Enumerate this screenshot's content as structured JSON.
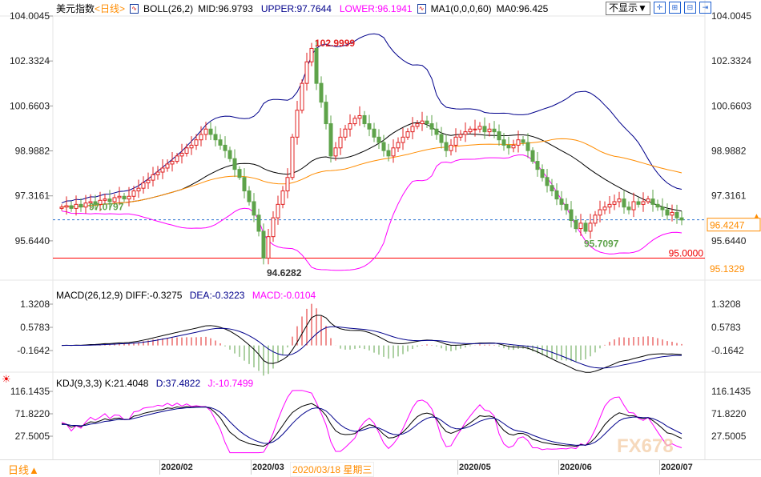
{
  "header": {
    "symbol": "美元指数",
    "period": "<日线>",
    "boll": "BOLL(26,2)",
    "mid": "MID:96.9793",
    "upper": "UPPER:97.7644",
    "lower": "LOWER:96.1941",
    "ma": "MA1(0,0,0,60)",
    "ma0": "MA0:96.425",
    "display_select": "不显示▼"
  },
  "macd_header": {
    "name": "MACD(26,12,9)",
    "diff": "DIFF:-0.3275",
    "dea": "DEA:-0.3223",
    "macd": "MACD:-0.0104"
  },
  "kdj_header": {
    "name": "KDJ(9,3,3)",
    "k": "K:21.4048",
    "d": "D:37.4822",
    "j": "J:-10.7499"
  },
  "footer": {
    "period": "日线▲",
    "cursor_date": "2020/03/18 星期三"
  },
  "colors": {
    "up": "#e02020",
    "down": "#5ea34a",
    "upper": "#00008b",
    "lower": "#ff00ff",
    "ma": "#ff8c00",
    "accent": "#ff8c00"
  },
  "chart_data": {
    "type": "candlestick",
    "price_ticks": [
      "104.0045",
      "102.3324",
      "100.6603",
      "98.9882",
      "97.3161",
      "95.6440"
    ],
    "price_tick_values": [
      104.0045,
      102.3324,
      100.6603,
      98.9882,
      97.3161,
      95.644
    ],
    "last_price": "96.4247",
    "last_price_value": 96.4247,
    "extra_right_label": "95.1329",
    "extra_right_value": 95.1329,
    "support_line": "95.0000",
    "support_value": 95.0,
    "annotations": [
      {
        "text": "102.9999",
        "value": 102.9999,
        "index": 52
      },
      {
        "text": "94.6282",
        "value": 94.6282,
        "index": 42
      },
      {
        "text": "97.0797",
        "value": 97.0797,
        "index": 5
      },
      {
        "text": "95.7097",
        "value": 95.7097,
        "index": 108
      }
    ],
    "x_labels": [
      {
        "text": "2020/02",
        "index": 21
      },
      {
        "text": "2020/03",
        "index": 40
      },
      {
        "text": "2020/05",
        "index": 83
      },
      {
        "text": "2020/06",
        "index": 104
      },
      {
        "text": "2020/07",
        "index": 125
      }
    ],
    "macd_ticks": [
      "1.3208",
      "0.5783",
      "-0.1642"
    ],
    "macd_tick_values": [
      1.3208,
      0.5783,
      -0.1642
    ],
    "kdj_ticks": [
      "116.1435",
      "71.8220",
      "27.5005"
    ],
    "kdj_tick_values": [
      116.1435,
      71.822,
      27.5005
    ],
    "closes": [
      96.9,
      96.95,
      96.85,
      97.0,
      96.9,
      97.05,
      97.1,
      97.0,
      97.15,
      97.2,
      97.1,
      97.25,
      97.3,
      97.2,
      97.3,
      97.5,
      97.6,
      97.8,
      97.9,
      98.1,
      98.2,
      98.35,
      98.5,
      98.6,
      98.8,
      98.9,
      99.1,
      99.2,
      99.4,
      99.6,
      99.8,
      99.6,
      99.4,
      99.2,
      99.0,
      98.7,
      98.3,
      98.0,
      97.5,
      97.1,
      96.6,
      96.0,
      95.0,
      95.8,
      96.5,
      97.0,
      97.5,
      98.0,
      99.5,
      100.5,
      101.5,
      102.3,
      102.8,
      101.5,
      100.8,
      100.0,
      98.8,
      99.1,
      99.5,
      99.8,
      100.0,
      100.2,
      100.3,
      100.0,
      99.8,
      99.5,
      99.3,
      99.0,
      98.8,
      99.1,
      99.3,
      99.5,
      99.7,
      99.9,
      100.0,
      100.1,
      100.0,
      99.8,
      99.6,
      99.3,
      99.0,
      99.2,
      99.5,
      99.6,
      99.7,
      99.8,
      99.8,
      99.9,
      99.7,
      99.8,
      99.7,
      99.4,
      99.2,
      99.1,
      99.2,
      99.4,
      99.3,
      99.0,
      98.6,
      98.3,
      98.0,
      97.7,
      97.5,
      97.2,
      97.0,
      96.8,
      96.4,
      96.1,
      96.3,
      96.0,
      96.3,
      96.6,
      96.8,
      96.9,
      97.0,
      97.1,
      97.2,
      96.9,
      96.8,
      97.1,
      97.0,
      97.1,
      97.2,
      97.0,
      96.9,
      96.8,
      96.6,
      96.7,
      96.5,
      96.42
    ]
  }
}
